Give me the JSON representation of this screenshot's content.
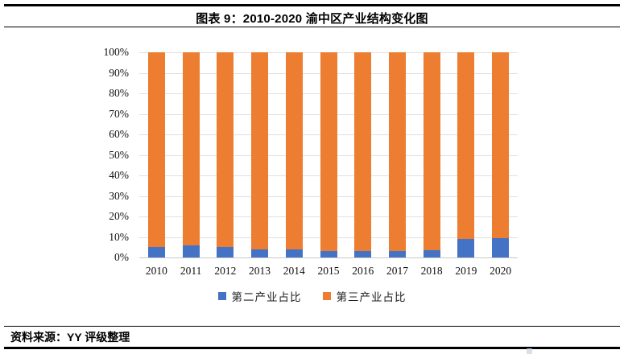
{
  "header": {
    "title": "图表 9：2010-2020 渝中区产业结构变化图"
  },
  "footer": {
    "source": "资料来源：YY 评级整理"
  },
  "colors": {
    "secondary_series": "#4472C4",
    "tertiary_series": "#ED7D31",
    "gridline": "#e0e0e0",
    "rule": "#000000"
  },
  "chart_data": {
    "type": "bar",
    "stacked": true,
    "title": "图表 9：2010-2020 渝中区产业结构变化图",
    "categories": [
      "2010",
      "2011",
      "2012",
      "2013",
      "2014",
      "2015",
      "2016",
      "2017",
      "2018",
      "2019",
      "2020"
    ],
    "series": [
      {
        "name": "第二产业占比",
        "color": "#4472C4",
        "values": [
          5.0,
          5.8,
          5.2,
          3.8,
          3.8,
          3.2,
          3.0,
          3.0,
          3.4,
          9.2,
          9.5
        ]
      },
      {
        "name": "第三产业占比",
        "color": "#ED7D31",
        "values": [
          95.0,
          94.2,
          94.8,
          96.2,
          96.2,
          96.8,
          97.0,
          97.0,
          96.6,
          90.8,
          90.5
        ]
      }
    ],
    "xlabel": "",
    "ylabel": "",
    "ylim": [
      0,
      100
    ],
    "ytick_labels": [
      "100%",
      "90%",
      "80%",
      "70%",
      "60%",
      "50%",
      "40%",
      "30%",
      "20%",
      "10%",
      "0%"
    ],
    "grid": "horizontal",
    "legend_position": "bottom"
  }
}
